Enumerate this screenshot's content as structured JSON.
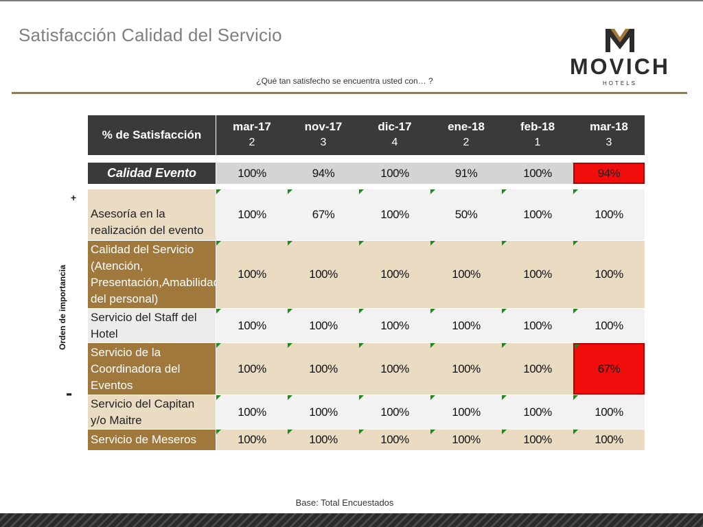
{
  "title": "Satisfacción Calidad del Servicio",
  "subtitle": "¿Qué tan satisfecho se encuentra usted con… ?",
  "logo": {
    "name": "MOVICH",
    "sub": "HOTELS"
  },
  "side_label": "Orden de importancia",
  "plus": "+",
  "minus": "-",
  "table": {
    "header_label": "% de Satisfacción",
    "columns": [
      {
        "month": "mar-17",
        "n": "2"
      },
      {
        "month": "nov-17",
        "n": "3"
      },
      {
        "month": "dic-17",
        "n": "4"
      },
      {
        "month": "ene-18",
        "n": "2"
      },
      {
        "month": "feb-18",
        "n": "1"
      },
      {
        "month": "mar-18",
        "n": "3"
      }
    ],
    "calidad_evento": {
      "label": "Calidad Evento",
      "values": [
        "100%",
        "94%",
        "100%",
        "91%",
        "100%",
        "94%"
      ]
    },
    "rows": [
      {
        "label": "Asesoría en la realización del evento",
        "values": [
          "100%",
          "67%",
          "100%",
          "50%",
          "100%",
          "100%"
        ]
      },
      {
        "label": "Calidad del Servicio (Atención, Presentación,Amabilidad del personal)",
        "values": [
          "100%",
          "100%",
          "100%",
          "100%",
          "100%",
          "100%"
        ]
      },
      {
        "label": "Servicio del Staff del Hotel",
        "values": [
          "100%",
          "100%",
          "100%",
          "100%",
          "100%",
          "100%"
        ]
      },
      {
        "label": "Servicio de la Coordinadora del Eventos",
        "values": [
          "100%",
          "100%",
          "100%",
          "100%",
          "100%",
          "67%"
        ]
      },
      {
        "label": "Servicio del Capitan y/o Maitre",
        "values": [
          "100%",
          "100%",
          "100%",
          "100%",
          "100%",
          "100%"
        ]
      },
      {
        "label": "Servicio de Meseros",
        "values": [
          "100%",
          "100%",
          "100%",
          "100%",
          "100%",
          "100%"
        ]
      }
    ]
  },
  "footer": "Base: Total Encuestados",
  "colors": {
    "header_bg": "#3a3a3a",
    "gold": "#a0783b",
    "tan": "#eadbc3",
    "alert_red": "#f20d0d",
    "flag_green": "#1e8a1e"
  }
}
